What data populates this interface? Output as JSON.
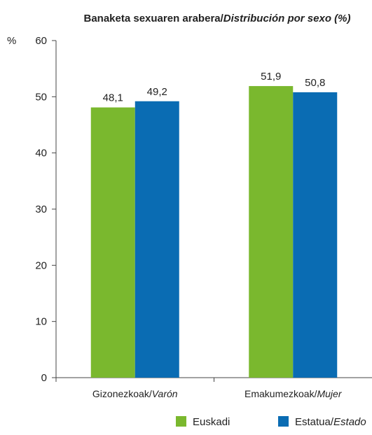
{
  "chart_data": {
    "type": "bar",
    "title_plain": "Banaketa sexuaren arabera/",
    "title_italic": "Distribución por sexo (%)",
    "ylabel": "%",
    "ylim": [
      0,
      60
    ],
    "yticks": [
      0,
      10,
      20,
      30,
      40,
      50,
      60
    ],
    "grid": false,
    "legend_position": "bottom",
    "categories": [
      {
        "plain": "Gizonezkoak/",
        "italic": "Varón"
      },
      {
        "plain": "Emakumezkoak/",
        "italic": "Mujer"
      }
    ],
    "series": [
      {
        "name_plain": "Euskadi",
        "name_italic": "",
        "color": "#7ab82e",
        "values": [
          48.1,
          51.9
        ],
        "labels": [
          "48,1",
          "51,9"
        ]
      },
      {
        "name_plain": "Estatua/",
        "name_italic": "Estado",
        "color": "#0a6cb3",
        "values": [
          49.2,
          50.8
        ],
        "labels": [
          "49,2",
          "50,8"
        ]
      }
    ]
  }
}
